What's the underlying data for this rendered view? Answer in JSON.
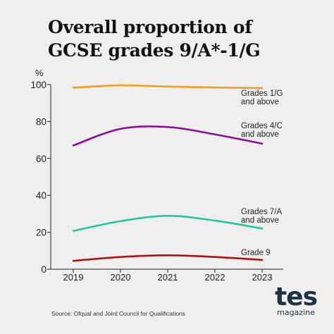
{
  "title_lines": [
    "Overall proportion of",
    "GCSE grades 9/A*-1/G"
  ],
  "source": "Source: Ofqual and Joint Council for Qualifications",
  "logo": {
    "word": "tes",
    "sub": "magazine"
  },
  "chart_data": {
    "type": "line",
    "title": "Overall proportion of GCSE grades 9/A*-1/G",
    "ylabel": "%",
    "xlabel": "",
    "x": [
      "2019",
      "2020",
      "2021",
      "2022",
      "2023"
    ],
    "ylim": [
      0,
      100
    ],
    "yticks": [
      0,
      20,
      40,
      60,
      80,
      100
    ],
    "grid": false,
    "series": [
      {
        "name_lines": [
          "Grades 1/G",
          "and above"
        ],
        "color": "#f0a020",
        "values": [
          98.3,
          99.6,
          98.9,
          98.4,
          98.1
        ]
      },
      {
        "name_lines": [
          "Grades 4/C",
          "and above"
        ],
        "color": "#8c0aa0",
        "values": [
          67.0,
          76.0,
          77.0,
          73.0,
          68.0
        ]
      },
      {
        "name_lines": [
          "Grades 7/A",
          "and above"
        ],
        "color": "#20c8a0",
        "values": [
          20.7,
          26.0,
          28.9,
          26.3,
          22.0
        ]
      },
      {
        "name_lines": [
          "Grade 9"
        ],
        "color": "#b01010",
        "values": [
          4.5,
          6.6,
          7.5,
          6.6,
          5.0
        ]
      }
    ]
  }
}
